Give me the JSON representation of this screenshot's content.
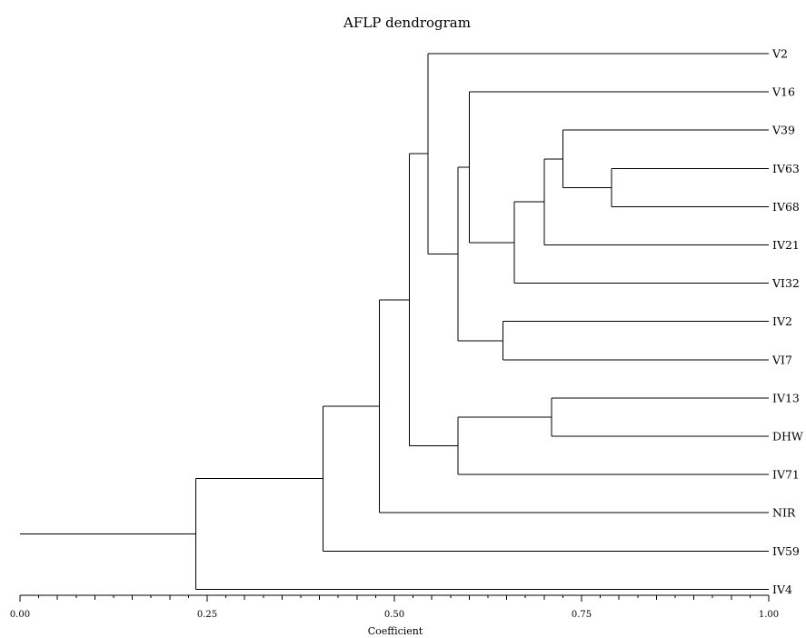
{
  "chart_data": {
    "type": "dendrogram",
    "title": "AFLP dendrogram",
    "xlabel": "Coefficient",
    "xlim": [
      0.0,
      1.0
    ],
    "x_ticks": [
      "0.00",
      "0.25",
      "0.50",
      "0.75",
      "1.00"
    ],
    "x_tick_values": [
      0.0,
      0.25,
      0.5,
      0.75,
      1.0
    ],
    "leaves": [
      "V2",
      "V16",
      "V39",
      "IV63",
      "IV68",
      "IV21",
      "VI32",
      "IV2",
      "VI7",
      "IV13",
      "DHW",
      "IV71",
      "NIR",
      "IV59",
      "IV4"
    ],
    "root_stem_from": 0.0,
    "merges": [
      {
        "members": [
          "IV63",
          "IV68"
        ],
        "coefficient": 0.79
      },
      {
        "members": [
          "V39",
          "IV63+IV68"
        ],
        "coefficient": 0.725
      },
      {
        "members": [
          "IV13",
          "DHW"
        ],
        "coefficient": 0.71
      },
      {
        "members": [
          "V39+IV63+IV68",
          "IV21"
        ],
        "coefficient": 0.7
      },
      {
        "members": [
          "V39..IV21",
          "VI32"
        ],
        "coefficient": 0.66
      },
      {
        "members": [
          "IV2",
          "VI7"
        ],
        "coefficient": 0.645
      },
      {
        "members": [
          "V16",
          "V39..VI32"
        ],
        "coefficient": 0.6
      },
      {
        "members": [
          "IV13+DHW",
          "IV71"
        ],
        "coefficient": 0.585
      },
      {
        "members": [
          "V16..VI32",
          "IV2+VI7"
        ],
        "coefficient": 0.585
      },
      {
        "members": [
          "V2",
          "V16..VI7"
        ],
        "coefficient": 0.545
      },
      {
        "members": [
          "V2..VI7",
          "IV13..IV71"
        ],
        "coefficient": 0.52
      },
      {
        "members": [
          "V2..IV71",
          "NIR"
        ],
        "coefficient": 0.48
      },
      {
        "members": [
          "V2..NIR",
          "IV59"
        ],
        "coefficient": 0.405
      },
      {
        "members": [
          "V2..IV59",
          "IV4"
        ],
        "coefficient": 0.235
      }
    ]
  }
}
